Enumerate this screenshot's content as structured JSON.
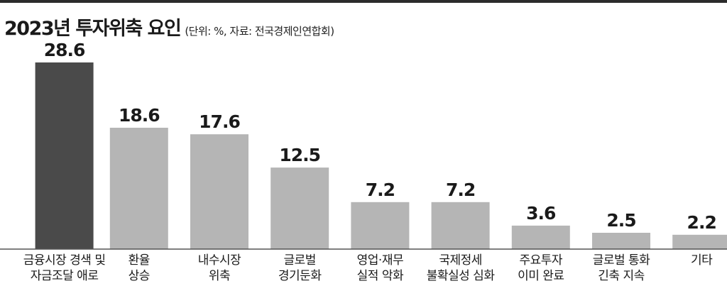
{
  "header": {
    "title": "2023년 투자위축 요인",
    "subtitle": "(단위: %, 자료: 전국경제인연합회)"
  },
  "colors": {
    "highlight_bar": "#4a4a4a",
    "default_bar": "#b5b5b5",
    "baseline": "#555555"
  },
  "chart_data": {
    "type": "bar",
    "title": "2023년 투자위축 요인",
    "xlabel": "",
    "ylabel": "",
    "ylim": [
      0,
      30
    ],
    "grid": false,
    "legend": "none",
    "categories": [
      [
        "금융시장 경색 및",
        "자금조달 애로"
      ],
      [
        "환율",
        "상승"
      ],
      [
        "내수시장",
        "위축"
      ],
      [
        "글로벌",
        "경기둔화"
      ],
      [
        "영업·재무",
        "실적 악화"
      ],
      [
        "국제정세",
        "불확실성 심화"
      ],
      [
        "주요투자",
        "이미 완료"
      ],
      [
        "글로벌 통화",
        "긴축 지속"
      ],
      [
        "기타"
      ]
    ],
    "values": [
      28.6,
      18.6,
      17.6,
      12.5,
      7.2,
      7.2,
      3.6,
      2.5,
      2.2
    ],
    "value_labels": [
      "28.6",
      "18.6",
      "17.6",
      "12.5",
      "7.2",
      "7.2",
      "3.6",
      "2.5",
      "2.2"
    ],
    "highlight_index": 0
  }
}
